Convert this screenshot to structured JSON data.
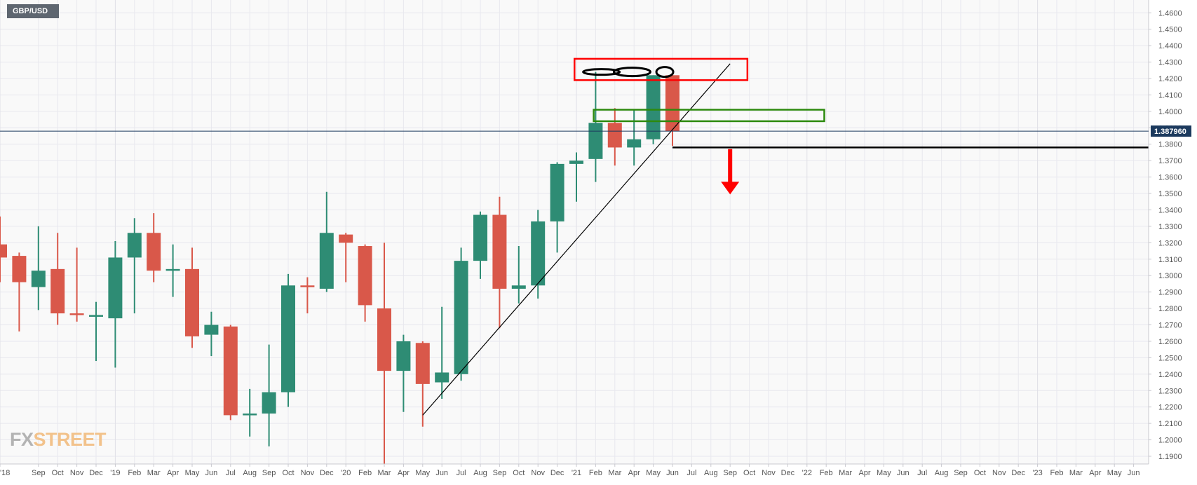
{
  "symbol": "GBP/USD",
  "logo": {
    "part1": "FX",
    "part2": "STREET"
  },
  "chart_data": {
    "type": "candlestick",
    "title": "GBP/USD",
    "interval": "monthly",
    "y_ticks": [
      "1.1900",
      "1.2000",
      "1.2100",
      "1.2200",
      "1.2300",
      "1.2400",
      "1.2500",
      "1.2600",
      "1.2700",
      "1.2800",
      "1.2900",
      "1.3000",
      "1.3100",
      "1.3200",
      "1.3300",
      "1.3400",
      "1.3500",
      "1.3600",
      "1.3700",
      "1.3800",
      "1.3900",
      "1.4000",
      "1.4100",
      "1.4200",
      "1.4300",
      "1.4400",
      "1.4500",
      "1.4600"
    ],
    "ylim": [
      1.1853,
      1.4678
    ],
    "current_price": "1.387960",
    "candles": [
      {
        "t": "Jul '18",
        "o": 1.319,
        "h": 1.336,
        "l": 1.296,
        "c": 1.311
      },
      {
        "t": "Aug '18",
        "o": 1.312,
        "h": 1.314,
        "l": 1.266,
        "c": 1.296
      },
      {
        "t": "Sep '18",
        "o": 1.293,
        "h": 1.33,
        "l": 1.279,
        "c": 1.303
      },
      {
        "t": "Oct '18",
        "o": 1.304,
        "h": 1.326,
        "l": 1.27,
        "c": 1.277
      },
      {
        "t": "Nov '18",
        "o": 1.277,
        "h": 1.317,
        "l": 1.272,
        "c": 1.276
      },
      {
        "t": "Dec '18",
        "o": 1.275,
        "h": 1.284,
        "l": 1.248,
        "c": 1.276
      },
      {
        "t": "Jan '19",
        "o": 1.274,
        "h": 1.321,
        "l": 1.244,
        "c": 1.311
      },
      {
        "t": "Feb '19",
        "o": 1.311,
        "h": 1.335,
        "l": 1.277,
        "c": 1.326
      },
      {
        "t": "Mar '19",
        "o": 1.326,
        "h": 1.338,
        "l": 1.296,
        "c": 1.303
      },
      {
        "t": "Apr '19",
        "o": 1.303,
        "h": 1.319,
        "l": 1.287,
        "c": 1.304
      },
      {
        "t": "May '19",
        "o": 1.304,
        "h": 1.317,
        "l": 1.256,
        "c": 1.263
      },
      {
        "t": "Jun '19",
        "o": 1.264,
        "h": 1.278,
        "l": 1.251,
        "c": 1.27
      },
      {
        "t": "Jul '19",
        "o": 1.269,
        "h": 1.27,
        "l": 1.212,
        "c": 1.215
      },
      {
        "t": "Aug '19",
        "o": 1.215,
        "h": 1.231,
        "l": 1.202,
        "c": 1.216
      },
      {
        "t": "Sep '19",
        "o": 1.216,
        "h": 1.258,
        "l": 1.196,
        "c": 1.229
      },
      {
        "t": "Oct '19",
        "o": 1.229,
        "h": 1.301,
        "l": 1.22,
        "c": 1.294
      },
      {
        "t": "Nov '19",
        "o": 1.294,
        "h": 1.299,
        "l": 1.277,
        "c": 1.293
      },
      {
        "t": "Dec '19",
        "o": 1.292,
        "h": 1.351,
        "l": 1.29,
        "c": 1.326
      },
      {
        "t": "Jan '20",
        "o": 1.325,
        "h": 1.326,
        "l": 1.296,
        "c": 1.32
      },
      {
        "t": "Feb '20",
        "o": 1.318,
        "h": 1.319,
        "l": 1.272,
        "c": 1.282
      },
      {
        "t": "Mar '20",
        "o": 1.28,
        "h": 1.32,
        "l": 1.141,
        "c": 1.242
      },
      {
        "t": "Apr '20",
        "o": 1.242,
        "h": 1.264,
        "l": 1.217,
        "c": 1.26
      },
      {
        "t": "May '20",
        "o": 1.259,
        "h": 1.26,
        "l": 1.208,
        "c": 1.234
      },
      {
        "t": "Jun '20",
        "o": 1.235,
        "h": 1.281,
        "l": 1.225,
        "c": 1.241
      },
      {
        "t": "Jul '20",
        "o": 1.24,
        "h": 1.317,
        "l": 1.236,
        "c": 1.309
      },
      {
        "t": "Aug '20",
        "o": 1.309,
        "h": 1.339,
        "l": 1.298,
        "c": 1.337
      },
      {
        "t": "Sep '20",
        "o": 1.337,
        "h": 1.348,
        "l": 1.268,
        "c": 1.292
      },
      {
        "t": "Oct '20",
        "o": 1.292,
        "h": 1.318,
        "l": 1.283,
        "c": 1.294
      },
      {
        "t": "Nov '20",
        "o": 1.294,
        "h": 1.34,
        "l": 1.286,
        "c": 1.333
      },
      {
        "t": "Dec '20",
        "o": 1.333,
        "h": 1.369,
        "l": 1.314,
        "c": 1.368
      },
      {
        "t": "Jan '21",
        "o": 1.368,
        "h": 1.375,
        "l": 1.345,
        "c": 1.37
      },
      {
        "t": "Feb '21",
        "o": 1.371,
        "h": 1.424,
        "l": 1.357,
        "c": 1.393
      },
      {
        "t": "Mar '21",
        "o": 1.393,
        "h": 1.402,
        "l": 1.367,
        "c": 1.378
      },
      {
        "t": "Apr '21",
        "o": 1.378,
        "h": 1.401,
        "l": 1.367,
        "c": 1.383
      },
      {
        "t": "May '21",
        "o": 1.383,
        "h": 1.422,
        "l": 1.38,
        "c": 1.422
      },
      {
        "t": "Jun '21",
        "o": 1.422,
        "h": 1.423,
        "l": 1.379,
        "c": 1.388
      }
    ],
    "x_labels": [
      {
        "i": 0,
        "label": "'18"
      },
      {
        "i": 2,
        "label": "Sep"
      },
      {
        "i": 3,
        "label": "Oct"
      },
      {
        "i": 4,
        "label": "Nov"
      },
      {
        "i": 5,
        "label": "Dec"
      },
      {
        "i": 6,
        "label": "'19"
      },
      {
        "i": 7,
        "label": "Feb"
      },
      {
        "i": 8,
        "label": "Mar"
      },
      {
        "i": 9,
        "label": "Apr"
      },
      {
        "i": 10,
        "label": "May"
      },
      {
        "i": 11,
        "label": "Jun"
      },
      {
        "i": 12,
        "label": "Jul"
      },
      {
        "i": 13,
        "label": "Aug"
      },
      {
        "i": 14,
        "label": "Sep"
      },
      {
        "i": 15,
        "label": "Oct"
      },
      {
        "i": 16,
        "label": "Nov"
      },
      {
        "i": 17,
        "label": "Dec"
      },
      {
        "i": 18,
        "label": "'20"
      },
      {
        "i": 19,
        "label": "Feb"
      },
      {
        "i": 20,
        "label": "Mar"
      },
      {
        "i": 21,
        "label": "Apr"
      },
      {
        "i": 22,
        "label": "May"
      },
      {
        "i": 23,
        "label": "Jun"
      },
      {
        "i": 24,
        "label": "Jul"
      },
      {
        "i": 25,
        "label": "Aug"
      },
      {
        "i": 26,
        "label": "Sep"
      },
      {
        "i": 27,
        "label": "Oct"
      },
      {
        "i": 28,
        "label": "Nov"
      },
      {
        "i": 29,
        "label": "Dec"
      },
      {
        "i": 30,
        "label": "'21"
      },
      {
        "i": 31,
        "label": "Feb"
      },
      {
        "i": 32,
        "label": "Mar"
      },
      {
        "i": 33,
        "label": "Apr"
      },
      {
        "i": 34,
        "label": "May"
      },
      {
        "i": 35,
        "label": "Jun"
      },
      {
        "i": 36,
        "label": "Jul"
      },
      {
        "i": 37,
        "label": "Aug"
      },
      {
        "i": 38,
        "label": "Sep"
      },
      {
        "i": 39,
        "label": "Oct"
      },
      {
        "i": 40,
        "label": "Nov"
      },
      {
        "i": 41,
        "label": "Dec"
      },
      {
        "i": 42,
        "label": "'22"
      },
      {
        "i": 43,
        "label": "Feb"
      },
      {
        "i": 44,
        "label": "Mar"
      },
      {
        "i": 45,
        "label": "Apr"
      },
      {
        "i": 46,
        "label": "May"
      },
      {
        "i": 47,
        "label": "Jun"
      },
      {
        "i": 48,
        "label": "Jul"
      },
      {
        "i": 49,
        "label": "Aug"
      },
      {
        "i": 50,
        "label": "Sep"
      },
      {
        "i": 51,
        "label": "Oct"
      },
      {
        "i": 52,
        "label": "Nov"
      },
      {
        "i": 53,
        "label": "Dec"
      },
      {
        "i": 54,
        "label": "'23"
      },
      {
        "i": 55,
        "label": "Feb"
      },
      {
        "i": 56,
        "label": "Mar"
      },
      {
        "i": 57,
        "label": "Apr"
      },
      {
        "i": 58,
        "label": "May"
      },
      {
        "i": 59,
        "label": "Jun"
      }
    ],
    "annotations": {
      "trendline": {
        "from": {
          "i": 22,
          "price": 1.215
        },
        "to": {
          "i": 38,
          "price": 1.429
        }
      },
      "resistance_box": {
        "from_i": 29.9,
        "to_i": 38.9,
        "top": 1.432,
        "bottom": 1.419,
        "color": "#ff0000"
      },
      "support_box": {
        "from_i": 30.9,
        "to_i": 42.9,
        "top": 1.401,
        "bottom": 1.394,
        "color": "#2d8a0e"
      },
      "support_line": {
        "from_i": 35,
        "price": 1.378
      },
      "down_arrow": {
        "i": 38,
        "from": 1.377,
        "to": 1.352,
        "color": "#ff0000"
      }
    },
    "colors": {
      "up": "#2e8c74",
      "down": "#d9584a",
      "grid": "#e8e8ee",
      "axis_text": "#555555",
      "price_tag": "#1c3a5e"
    }
  }
}
